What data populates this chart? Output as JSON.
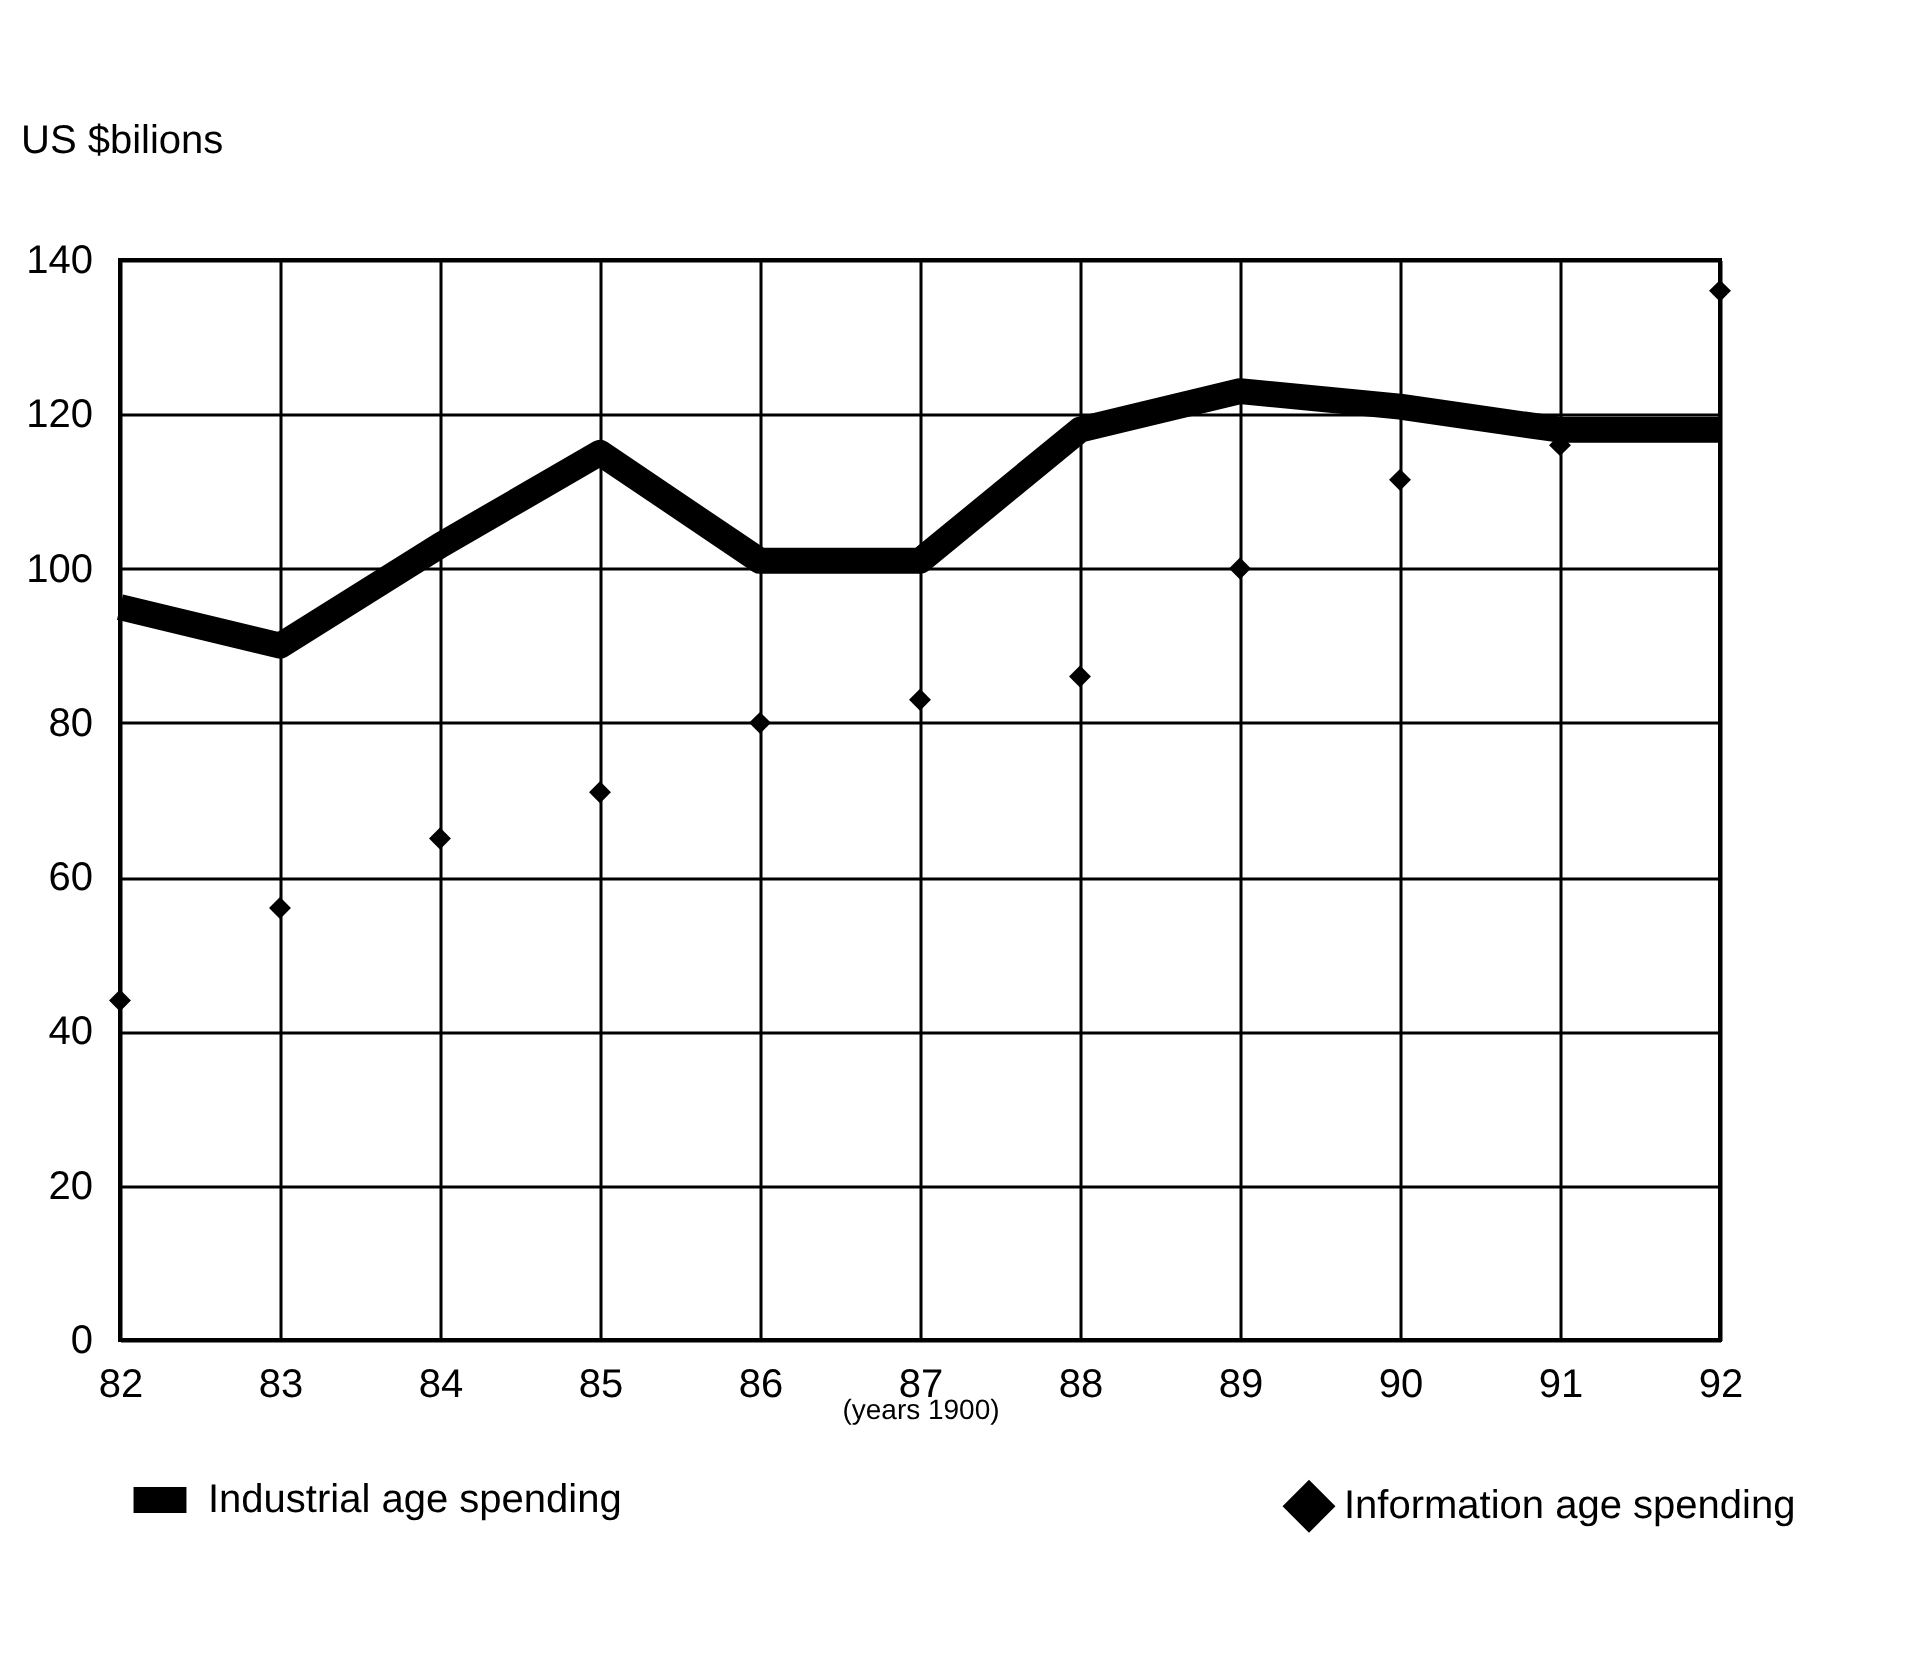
{
  "chart_data": {
    "type": "line",
    "xlabel": "(years 1900)",
    "ylabel": "US $bilions",
    "x": [
      82,
      83,
      84,
      85,
      86,
      87,
      88,
      89,
      90,
      91,
      92
    ],
    "series": [
      {
        "name": "Industrial age spending",
        "color": "#000000",
        "marker": "none",
        "values": [
          95,
          90,
          103,
          115,
          101,
          101,
          118,
          123,
          121,
          118,
          118
        ]
      },
      {
        "name": "Information age spending",
        "type": "scatter",
        "color": "#000000",
        "marker": "diamond",
        "values": [
          44,
          56,
          65,
          71,
          80,
          83,
          86,
          100,
          111.5,
          116,
          136
        ]
      }
    ],
    "xlim": [
      82,
      92
    ],
    "xticks": [
      82,
      83,
      84,
      85,
      86,
      87,
      88,
      89,
      90,
      91,
      92
    ],
    "ylim": [
      0,
      140
    ],
    "yticks": [
      0,
      20,
      40,
      60,
      80,
      100,
      120,
      140
    ],
    "grid": true,
    "legend": "bottom"
  }
}
